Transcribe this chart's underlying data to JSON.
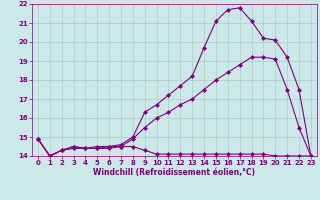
{
  "line1_x": [
    0,
    1,
    2,
    3,
    4,
    5,
    6,
    7,
    8,
    9,
    10,
    11,
    12,
    13,
    14,
    15,
    16,
    17,
    18,
    19,
    20,
    21,
    22,
    23
  ],
  "line1_y": [
    14.9,
    14.0,
    14.3,
    14.4,
    14.4,
    14.4,
    14.4,
    14.5,
    14.5,
    14.3,
    14.1,
    14.1,
    14.1,
    14.1,
    14.1,
    14.1,
    14.1,
    14.1,
    14.1,
    14.1,
    14.0,
    14.0,
    14.0,
    14.0
  ],
  "line2_x": [
    0,
    1,
    2,
    3,
    4,
    5,
    6,
    7,
    8,
    9,
    10,
    11,
    12,
    13,
    14,
    15,
    16,
    17,
    18,
    19,
    20,
    21,
    22,
    23
  ],
  "line2_y": [
    14.9,
    14.0,
    14.3,
    14.5,
    14.4,
    14.4,
    14.5,
    14.5,
    14.9,
    15.5,
    16.0,
    16.3,
    16.7,
    17.0,
    17.5,
    18.0,
    18.4,
    18.8,
    19.2,
    19.2,
    19.1,
    17.5,
    15.5,
    14.0
  ],
  "line3_x": [
    0,
    1,
    2,
    3,
    4,
    5,
    6,
    7,
    8,
    9,
    10,
    11,
    12,
    13,
    14,
    15,
    16,
    17,
    18,
    19,
    20,
    21,
    22,
    23
  ],
  "line3_y": [
    14.9,
    14.0,
    14.3,
    14.5,
    14.4,
    14.5,
    14.5,
    14.6,
    15.0,
    16.3,
    16.7,
    17.2,
    17.7,
    18.2,
    19.7,
    21.1,
    21.7,
    21.8,
    21.1,
    20.2,
    20.1,
    19.2,
    17.5,
    14.0
  ],
  "line_color": "#800080",
  "bg_color": "#cce8e8",
  "grid_color": "#aacccc",
  "xlabel": "Windchill (Refroidissement éolien,°C)",
  "xlim": [
    -0.5,
    23.5
  ],
  "ylim": [
    14,
    22
  ],
  "yticks": [
    14,
    15,
    16,
    17,
    18,
    19,
    20,
    21,
    22
  ],
  "xticks": [
    0,
    1,
    2,
    3,
    4,
    5,
    6,
    7,
    8,
    9,
    10,
    11,
    12,
    13,
    14,
    15,
    16,
    17,
    18,
    19,
    20,
    21,
    22,
    23
  ],
  "marker": "D",
  "marker_size": 2,
  "linewidth": 0.8,
  "tick_fontsize": 5,
  "xlabel_fontsize": 5.5
}
